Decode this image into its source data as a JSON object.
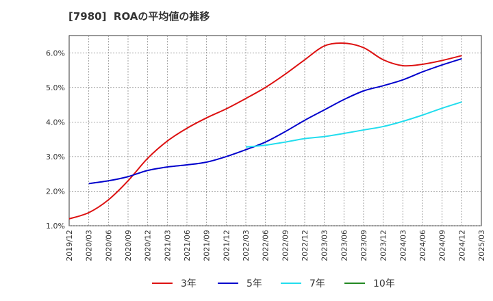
{
  "chart_data": {
    "type": "line",
    "title": "[7980]  ROAの平均値の推移",
    "xlabel": "",
    "ylabel": "",
    "x": [
      "2019/12",
      "2020/03",
      "2020/06",
      "2020/09",
      "2020/12",
      "2021/03",
      "2021/06",
      "2021/09",
      "2021/12",
      "2022/03",
      "2022/06",
      "2022/09",
      "2022/12",
      "2023/03",
      "2023/06",
      "2023/09",
      "2023/12",
      "2024/03",
      "2024/06",
      "2024/09",
      "2024/12",
      "2025/03"
    ],
    "ylim": [
      1.0,
      6.5
    ],
    "yticks": [
      1.0,
      2.0,
      3.0,
      4.0,
      5.0,
      6.0
    ],
    "ytick_labels": [
      "1.0%",
      "2.0%",
      "3.0%",
      "4.0%",
      "5.0%",
      "6.0%"
    ],
    "grid": true,
    "legend_position": "bottom",
    "series": [
      {
        "name": "3年",
        "color": "#dd1111",
        "values": [
          1.2,
          1.38,
          1.75,
          2.3,
          2.95,
          3.45,
          3.82,
          4.12,
          4.38,
          4.68,
          5.0,
          5.38,
          5.8,
          6.2,
          6.28,
          6.15,
          5.8,
          5.63,
          5.67,
          5.78,
          5.92,
          null
        ]
      },
      {
        "name": "5年",
        "color": "#0000cc",
        "values": [
          null,
          2.22,
          2.3,
          2.42,
          2.6,
          2.7,
          2.76,
          2.84,
          3.0,
          3.2,
          3.42,
          3.72,
          4.05,
          4.35,
          4.65,
          4.9,
          5.05,
          5.22,
          5.45,
          5.65,
          5.83,
          null
        ]
      },
      {
        "name": "7年",
        "color": "#22ddee",
        "values": [
          null,
          null,
          null,
          null,
          null,
          null,
          null,
          null,
          null,
          3.28,
          3.33,
          3.42,
          3.52,
          3.58,
          3.67,
          3.77,
          3.87,
          4.02,
          4.2,
          4.4,
          4.58,
          null
        ]
      },
      {
        "name": "10年",
        "color": "#228822",
        "values": [
          null,
          null,
          null,
          null,
          null,
          null,
          null,
          null,
          null,
          null,
          null,
          null,
          null,
          null,
          null,
          null,
          null,
          null,
          null,
          null,
          null,
          null
        ]
      }
    ]
  }
}
